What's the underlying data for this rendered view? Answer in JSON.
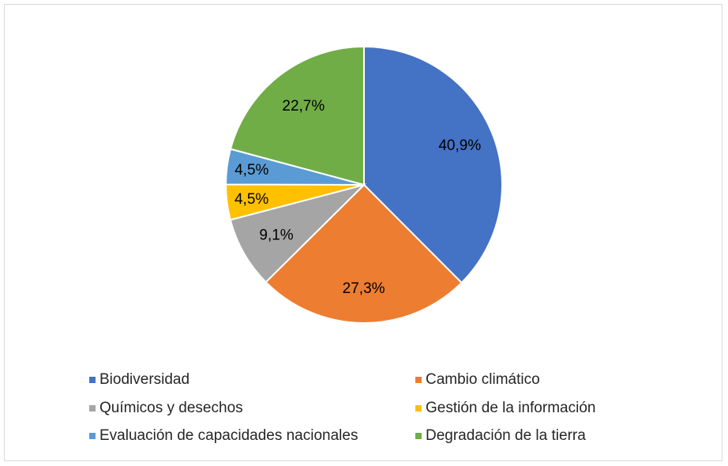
{
  "chart_data": {
    "type": "pie",
    "title": "",
    "categories": [
      "Biodiversidad",
      "Cambio climático",
      "Químicos y desechos",
      "Gestión de la información",
      "Evaluación de capacidades nacionales",
      "Degradación de la tierra"
    ],
    "values": [
      40.9,
      27.3,
      9.1,
      4.5,
      4.5,
      22.7
    ],
    "labels": [
      "40,9%",
      "27,3%",
      "9,1%",
      "4,5%",
      "4,5%",
      "22,7%"
    ],
    "colors": [
      "#4472C4",
      "#ED7D31",
      "#A5A5A5",
      "#FFC000",
      "#5B9BD5",
      "#70AD47"
    ],
    "legend_position": "bottom"
  }
}
